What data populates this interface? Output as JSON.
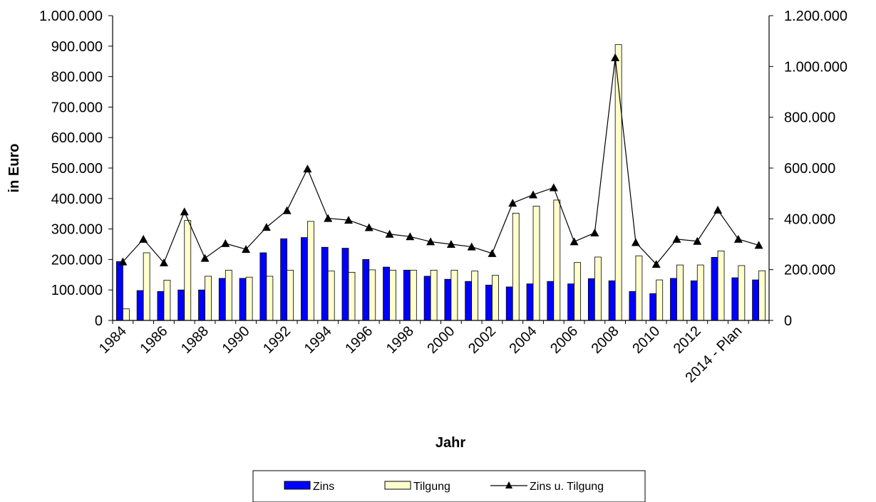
{
  "chart_data": {
    "type": "bar",
    "title": "",
    "xlabel": "Jahr",
    "ylabel": "in Euro",
    "categories": [
      "1984",
      "1985",
      "1986",
      "1987",
      "1988",
      "1989",
      "1990",
      "1991",
      "1992",
      "1993",
      "1994",
      "1995",
      "1996",
      "1997",
      "1998",
      "1999",
      "2000",
      "2001",
      "2002",
      "2003",
      "2004",
      "2005",
      "2006",
      "2007",
      "2008",
      "2009",
      "2010",
      "2011",
      "2012",
      "2013",
      "2014 - Plan",
      "2015"
    ],
    "x_tick_labels": [
      "1984",
      "",
      "1986",
      "",
      "1988",
      "",
      "1990",
      "",
      "1992",
      "",
      "1994",
      "",
      "1996",
      "",
      "1998",
      "",
      "2000",
      "",
      "2002",
      "",
      "2004",
      "",
      "2006",
      "",
      "2008",
      "",
      "2010",
      "",
      "2012",
      "",
      "2014 - Plan",
      ""
    ],
    "ylim": [
      0,
      1000000
    ],
    "y2lim": [
      0,
      1200000
    ],
    "y_ticks": [
      0,
      100000,
      200000,
      300000,
      400000,
      500000,
      600000,
      700000,
      800000,
      900000,
      1000000
    ],
    "y_tick_labels": [
      "0",
      "100.000",
      "200.000",
      "300.000",
      "400.000",
      "500.000",
      "600.000",
      "700.000",
      "800.000",
      "900.000",
      "1.000.000"
    ],
    "y2_ticks": [
      0,
      200000,
      400000,
      600000,
      800000,
      1000000,
      1200000
    ],
    "y2_tick_labels": [
      "0",
      "200.000",
      "400.000",
      "600.000",
      "800.000",
      "1.000.000",
      "1.200.000"
    ],
    "grid": false,
    "legend_position": "bottom",
    "series": [
      {
        "name": "Zins",
        "type": "bar",
        "axis": "left",
        "color": "#0000ff",
        "values": [
          193000,
          98000,
          95000,
          100000,
          100000,
          138000,
          138000,
          222000,
          268000,
          272000,
          240000,
          237000,
          200000,
          175000,
          165000,
          145000,
          135000,
          128000,
          116000,
          110000,
          120000,
          128000,
          120000,
          137000,
          130000,
          95000,
          88000,
          138000,
          130000,
          207000,
          140000,
          133000
        ]
      },
      {
        "name": "Tilgung",
        "type": "bar",
        "axis": "left",
        "color": "#ffffcc",
        "values": [
          38000,
          222000,
          132000,
          328000,
          145000,
          165000,
          142000,
          145000,
          165000,
          325000,
          162000,
          158000,
          166000,
          165000,
          165000,
          165000,
          165000,
          162000,
          148000,
          352000,
          375000,
          395000,
          190000,
          208000,
          905000,
          212000,
          133000,
          182000,
          182000,
          228000,
          180000,
          163000
        ]
      },
      {
        "name": "Zins u. Tilgung",
        "type": "line",
        "axis": "right",
        "color": "#000000",
        "marker": "triangle",
        "values": [
          231000,
          320000,
          227000,
          428000,
          245000,
          303000,
          280000,
          367000,
          433000,
          597000,
          402000,
          395000,
          366000,
          340000,
          330000,
          310000,
          300000,
          290000,
          264000,
          462000,
          495000,
          523000,
          310000,
          345000,
          1035000,
          307000,
          221000,
          320000,
          312000,
          435000,
          320000,
          296000
        ]
      }
    ]
  }
}
